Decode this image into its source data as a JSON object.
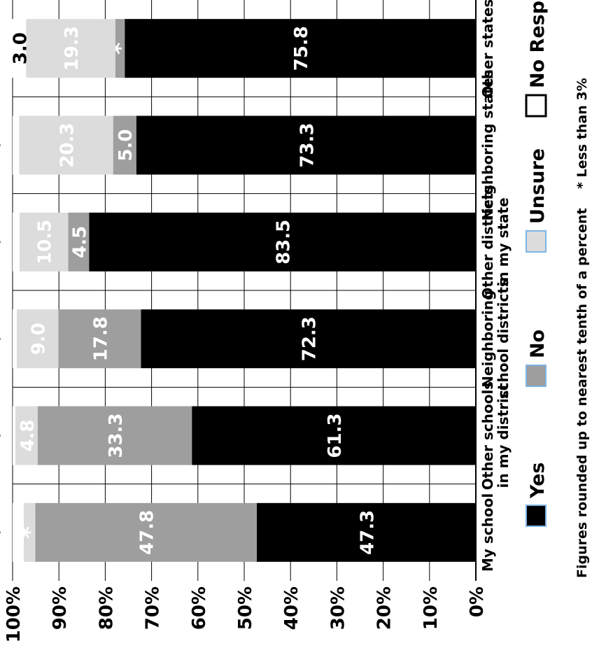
{
  "chart_data": {
    "type": "bar",
    "orientation": "stacked-100",
    "categories": [
      [
        "My school"
      ],
      [
        "Other schools",
        "in my district"
      ],
      [
        "Neighboring",
        "school districts"
      ],
      [
        "Other districts",
        "in my state"
      ],
      [
        "Neighboring states"
      ],
      [
        "Other states"
      ]
    ],
    "series": [
      {
        "name": "Yes",
        "color": "#000000",
        "values": [
          47.3,
          61.3,
          72.3,
          83.5,
          73.3,
          75.8
        ],
        "labels": [
          "47.3",
          "61.3",
          "72.3",
          "83.5",
          "73.3",
          "75.8"
        ],
        "label_color": "#ffffff"
      },
      {
        "name": "No",
        "color": "#9e9e9e",
        "values": [
          47.8,
          33.3,
          17.8,
          4.5,
          5.0,
          2.0
        ],
        "labels": [
          "47.8",
          "33.3",
          "17.8",
          "4.5",
          "5.0",
          "*"
        ],
        "label_color": "#ffffff"
      },
      {
        "name": "Unsure",
        "color": "#dcdcdc",
        "values": [
          2.5,
          4.8,
          9.0,
          10.5,
          20.3,
          19.3
        ],
        "labels": [
          "*",
          "4.8",
          "9.0",
          "10.5",
          "20.3",
          "19.3"
        ],
        "label_color": "#ffffff"
      },
      {
        "name": "No Response",
        "color": "#ffffff",
        "values": [
          2.4,
          0.6,
          0.9,
          1.5,
          1.4,
          3.0
        ],
        "labels": [
          "*",
          "*",
          "*",
          "*",
          "*",
          "3.0"
        ],
        "label_color": "#000000"
      }
    ],
    "value_axis": {
      "ylim": [
        0,
        100
      ],
      "ticks": [
        "0%",
        "10%",
        "20%",
        "30%",
        "40%",
        "50%",
        "60%",
        "70%",
        "80%",
        "90%",
        "100%"
      ]
    },
    "grid": true,
    "legend": {
      "placement": "bottom",
      "items": [
        "Yes",
        "No",
        "Unsure",
        "No Response"
      ]
    },
    "annotations": [
      "Figures rounded up to nearest tenth of a percent",
      "* Less than 3%"
    ]
  }
}
